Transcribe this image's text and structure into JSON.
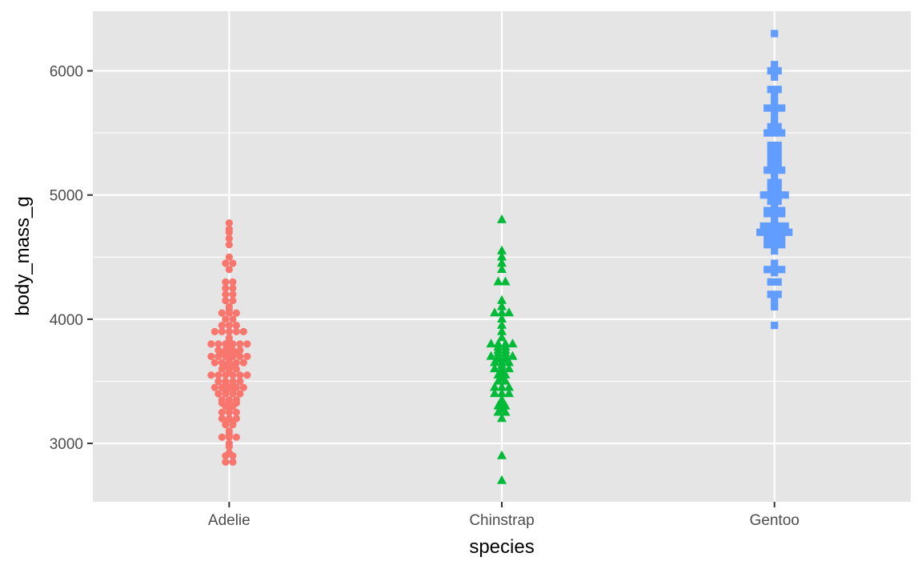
{
  "chart_data": {
    "type": "scatter",
    "subtype": "beeswarm",
    "title": "",
    "xlabel": "species",
    "ylabel": "body_mass_g",
    "categories": [
      "Adelie",
      "Chinstrap",
      "Gentoo"
    ],
    "ylim": [
      2530,
      6480
    ],
    "yticks": [
      3000,
      4000,
      5000,
      6000
    ],
    "grid": true,
    "legend": "none",
    "background": "#E5E5E5",
    "series": [
      {
        "name": "Adelie",
        "marker": "circle",
        "color": "#F8766D",
        "values": [
          2850,
          2850,
          2900,
          2900,
          2925,
          2975,
          3000,
          3050,
          3050,
          3050,
          3075,
          3100,
          3150,
          3150,
          3175,
          3175,
          3200,
          3200,
          3200,
          3250,
          3250,
          3250,
          3275,
          3300,
          3300,
          3325,
          3325,
          3325,
          3350,
          3350,
          3350,
          3400,
          3400,
          3400,
          3400,
          3425,
          3425,
          3450,
          3450,
          3450,
          3450,
          3450,
          3475,
          3475,
          3500,
          3500,
          3500,
          3500,
          3550,
          3550,
          3550,
          3550,
          3550,
          3550,
          3575,
          3600,
          3600,
          3600,
          3625,
          3625,
          3650,
          3650,
          3650,
          3650,
          3650,
          3675,
          3700,
          3700,
          3700,
          3700,
          3700,
          3700,
          3725,
          3725,
          3725,
          3750,
          3750,
          3750,
          3750,
          3775,
          3800,
          3800,
          3800,
          3800,
          3800,
          3800,
          3825,
          3850,
          3900,
          3900,
          3900,
          3900,
          3900,
          3950,
          3950,
          3950,
          4000,
          4000,
          4050,
          4050,
          4050,
          4075,
          4100,
          4150,
          4150,
          4200,
          4200,
          4250,
          4250,
          4300,
          4300,
          4400,
          4450,
          4450,
          4500,
          4600,
          4650,
          4700,
          4725,
          4775
        ]
      },
      {
        "name": "Chinstrap",
        "marker": "triangle",
        "color": "#00BA38",
        "values": [
          2700,
          2900,
          3200,
          3250,
          3250,
          3275,
          3300,
          3300,
          3325,
          3350,
          3400,
          3400,
          3400,
          3450,
          3450,
          3450,
          3500,
          3500,
          3525,
          3550,
          3550,
          3575,
          3600,
          3600,
          3600,
          3625,
          3650,
          3650,
          3650,
          3675,
          3675,
          3700,
          3700,
          3700,
          3700,
          3725,
          3725,
          3750,
          3750,
          3775,
          3775,
          3800,
          3800,
          3800,
          3800,
          3850,
          3900,
          3950,
          4000,
          4050,
          4050,
          4050,
          4100,
          4150,
          4300,
          4300,
          4400,
          4450,
          4500,
          4550,
          4800
        ]
      },
      {
        "name": "Gentoo",
        "marker": "square",
        "color": "#619CFF",
        "values": [
          3950,
          4100,
          4150,
          4200,
          4200,
          4300,
          4300,
          4375,
          4400,
          4400,
          4400,
          4450,
          4550,
          4600,
          4600,
          4600,
          4625,
          4625,
          4650,
          4650,
          4650,
          4700,
          4700,
          4700,
          4700,
          4700,
          4725,
          4725,
          4750,
          4750,
          4750,
          4750,
          4775,
          4800,
          4850,
          4850,
          4850,
          4875,
          4875,
          4875,
          4900,
          4925,
          4950,
          4950,
          5000,
          5000,
          5000,
          5000,
          5050,
          5050,
          5100,
          5100,
          5150,
          5200,
          5200,
          5200,
          5250,
          5250,
          5300,
          5300,
          5350,
          5350,
          5400,
          5400,
          5500,
          5500,
          5500,
          5550,
          5550,
          5600,
          5650,
          5700,
          5700,
          5700,
          5750,
          5800,
          5850,
          5850,
          5950,
          6000,
          6000,
          6050,
          6300
        ]
      }
    ]
  }
}
